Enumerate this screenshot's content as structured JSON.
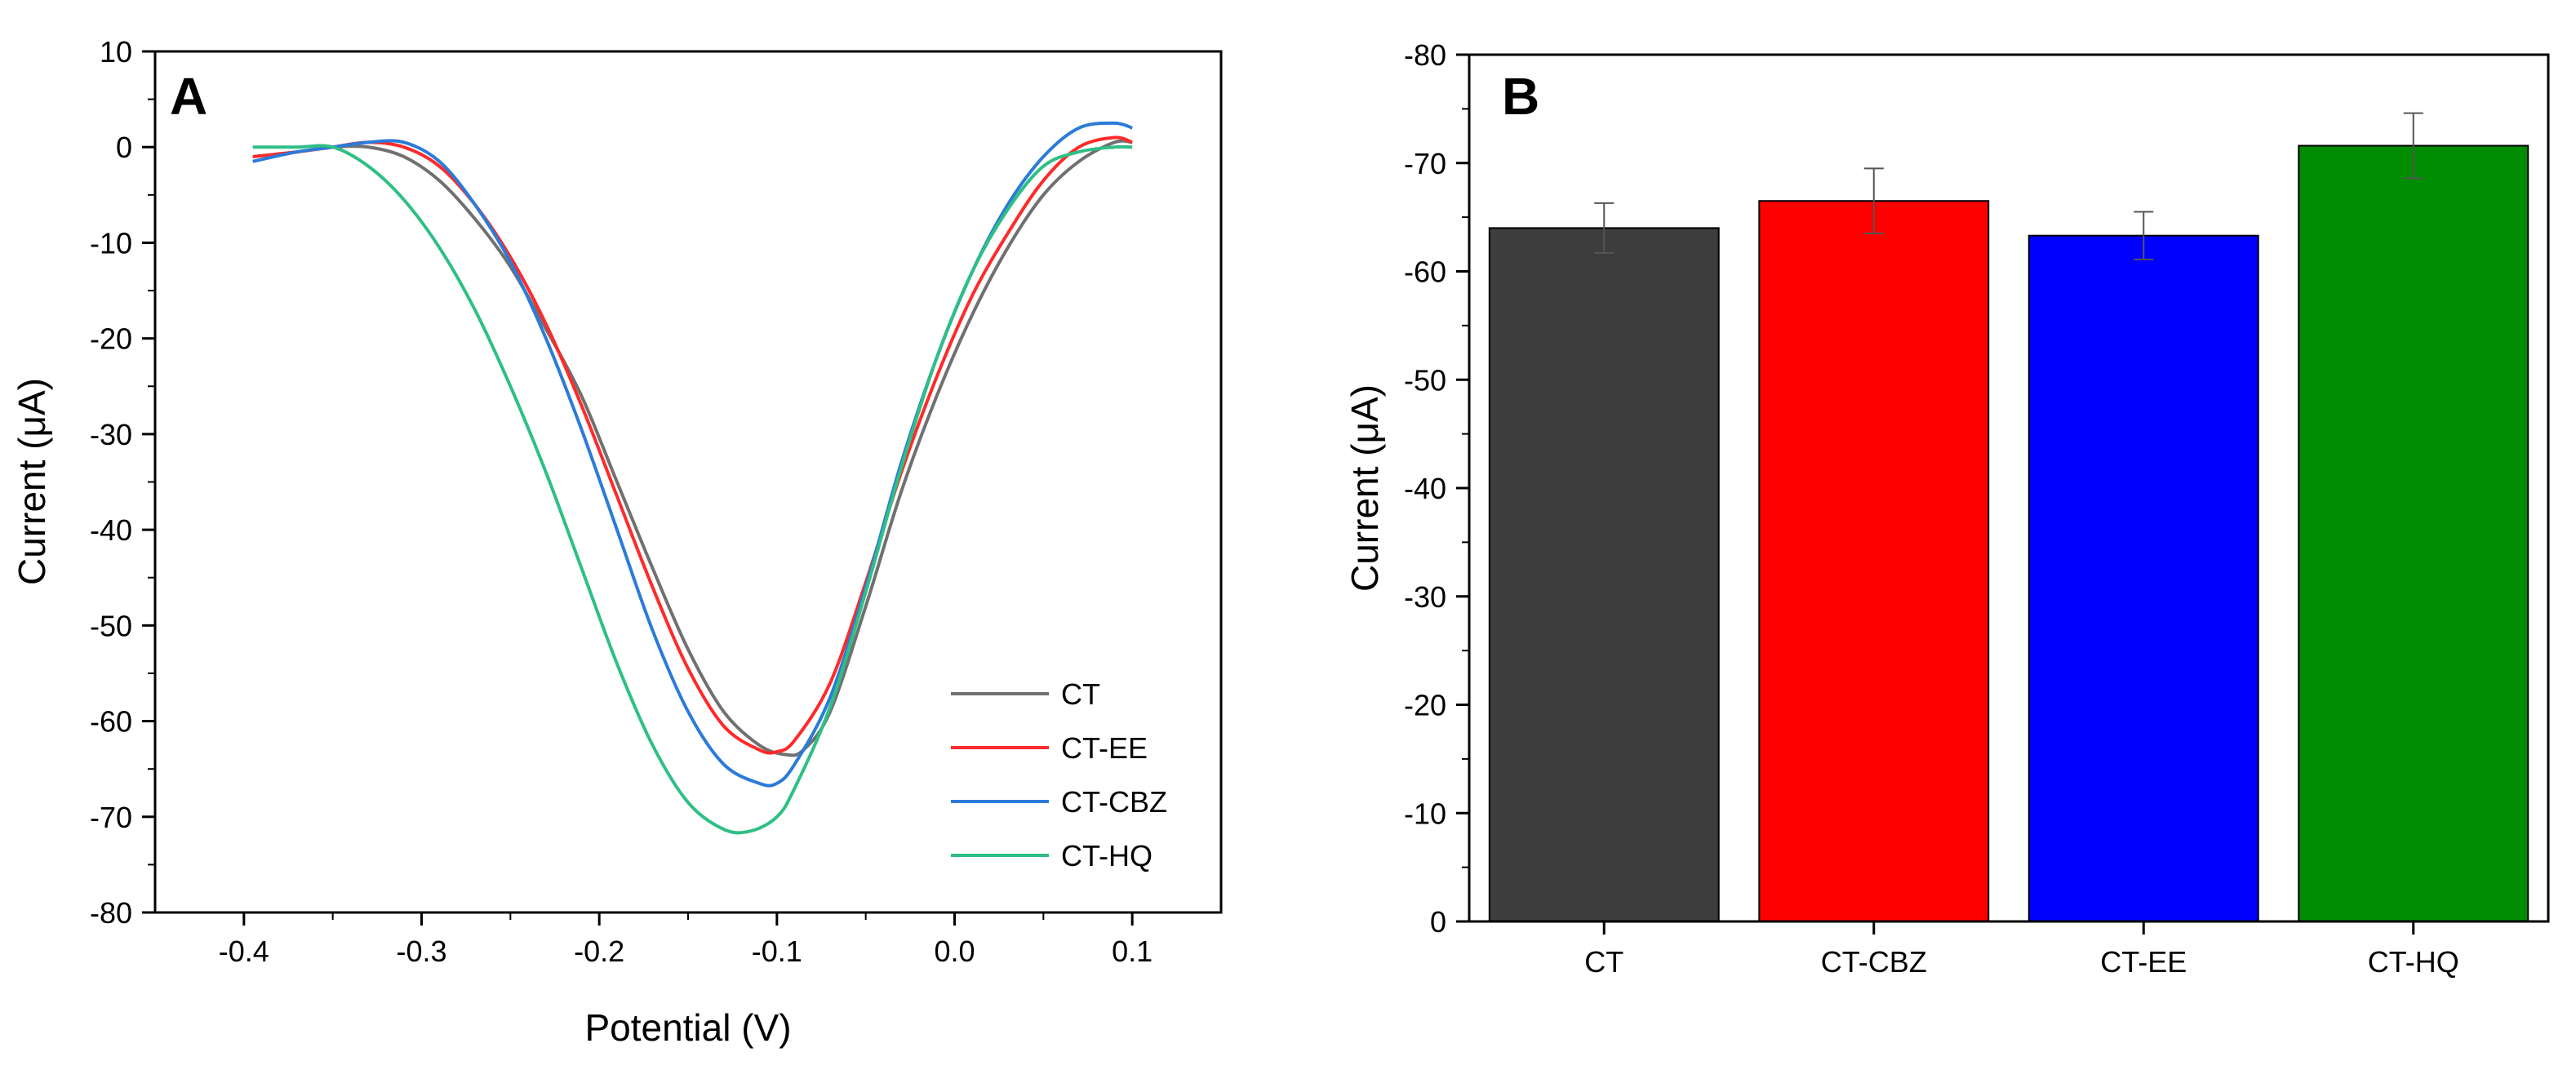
{
  "chart_data": [
    {
      "panel": "A",
      "type": "line",
      "xlabel": "Potential (V)",
      "ylabel": "Current (μA)",
      "xlim": [
        -0.45,
        0.15
      ],
      "ylim": [
        -80,
        10
      ],
      "xticks": [
        -0.4,
        -0.3,
        -0.2,
        -0.1,
        0.0,
        0.1
      ],
      "xtick_labels": [
        "-0.4",
        "-0.3",
        "-0.2",
        "-0.1",
        "0.0",
        "0.1"
      ],
      "yticks": [
        10,
        0,
        -10,
        -20,
        -30,
        -40,
        -50,
        -60,
        -70,
        -80
      ],
      "ytick_labels": [
        "10",
        "0",
        "-10",
        "-20",
        "-30",
        "-40",
        "-50",
        "-60",
        "-70",
        "-80"
      ],
      "legend_position": "bottom-right",
      "series": [
        {
          "name": "CT",
          "color": "#707070",
          "x": [
            -0.395,
            -0.37,
            -0.35,
            -0.33,
            -0.31,
            -0.29,
            -0.27,
            -0.25,
            -0.23,
            -0.21,
            -0.19,
            -0.17,
            -0.15,
            -0.13,
            -0.11,
            -0.095,
            -0.085,
            -0.07,
            -0.05,
            -0.03,
            -0.01,
            0.01,
            0.03,
            0.05,
            0.07,
            0.09,
            0.1
          ],
          "y": [
            -1.0,
            -0.5,
            0.0,
            0.0,
            -1.0,
            -3.5,
            -7.5,
            -12.5,
            -19.0,
            -26.0,
            -35.0,
            -44.0,
            -52.5,
            -59.0,
            -62.5,
            -63.5,
            -63.0,
            -59.0,
            -48.0,
            -36.0,
            -26.0,
            -17.5,
            -10.5,
            -5.0,
            -1.5,
            0.5,
            0.5
          ]
        },
        {
          "name": "CT-EE",
          "color": "#ff2a2a",
          "x": [
            -0.395,
            -0.37,
            -0.35,
            -0.33,
            -0.31,
            -0.29,
            -0.27,
            -0.25,
            -0.23,
            -0.21,
            -0.19,
            -0.17,
            -0.15,
            -0.13,
            -0.11,
            -0.1,
            -0.09,
            -0.07,
            -0.05,
            -0.03,
            -0.01,
            0.01,
            0.03,
            0.05,
            0.07,
            0.09,
            0.1
          ],
          "y": [
            -1.0,
            -0.5,
            0.0,
            0.5,
            0.0,
            -2.0,
            -6.0,
            -11.5,
            -18.5,
            -27.0,
            -36.5,
            -46.0,
            -54.5,
            -60.5,
            -63.0,
            -63.2,
            -62.0,
            -56.0,
            -45.5,
            -34.0,
            -24.0,
            -15.5,
            -9.0,
            -3.5,
            0.0,
            1.0,
            0.5
          ]
        },
        {
          "name": "CT-CBZ",
          "color": "#2b7bd9",
          "x": [
            -0.395,
            -0.37,
            -0.35,
            -0.33,
            -0.31,
            -0.29,
            -0.27,
            -0.25,
            -0.23,
            -0.21,
            -0.19,
            -0.17,
            -0.15,
            -0.13,
            -0.11,
            -0.1,
            -0.09,
            -0.07,
            -0.05,
            -0.03,
            -0.01,
            0.01,
            0.03,
            0.05,
            0.07,
            0.09,
            0.1
          ],
          "y": [
            -1.5,
            -0.5,
            0.0,
            0.5,
            0.5,
            -1.5,
            -6.0,
            -12.0,
            -20.0,
            -29.5,
            -40.0,
            -50.5,
            -59.0,
            -64.5,
            -66.5,
            -66.5,
            -64.5,
            -57.5,
            -46.0,
            -33.0,
            -22.0,
            -13.0,
            -6.0,
            -1.0,
            2.0,
            2.5,
            2.0
          ]
        },
        {
          "name": "CT-HQ",
          "color": "#2fbf85",
          "x": [
            -0.395,
            -0.37,
            -0.35,
            -0.33,
            -0.31,
            -0.29,
            -0.27,
            -0.25,
            -0.23,
            -0.21,
            -0.19,
            -0.17,
            -0.15,
            -0.13,
            -0.115,
            -0.1,
            -0.09,
            -0.07,
            -0.05,
            -0.03,
            -0.01,
            0.01,
            0.03,
            0.05,
            0.07,
            0.09,
            0.1
          ],
          "y": [
            0.0,
            0.0,
            0.0,
            -2.0,
            -5.5,
            -10.5,
            -17.0,
            -25.0,
            -34.0,
            -44.0,
            -54.0,
            -62.5,
            -68.5,
            -71.3,
            -71.5,
            -70.0,
            -67.0,
            -58.5,
            -46.5,
            -33.5,
            -22.0,
            -13.0,
            -6.5,
            -2.0,
            -0.5,
            0.0,
            0.0
          ]
        }
      ]
    },
    {
      "panel": "B",
      "type": "bar",
      "xlabel": "",
      "ylabel": "Current (μA)",
      "ylim": [
        0,
        -80
      ],
      "yticks": [
        -80,
        -70,
        -60,
        -50,
        -40,
        -30,
        -20,
        -10,
        0
      ],
      "ytick_labels": [
        "-80",
        "-70",
        "-60",
        "-50",
        "-40",
        "-30",
        "-20",
        "-10",
        "0"
      ],
      "categories": [
        "CT",
        "CT-CBZ",
        "CT-EE",
        "CT-HQ"
      ],
      "values": [
        -64.0,
        -66.5,
        -63.3,
        -71.6
      ],
      "errors": [
        2.3,
        3.0,
        2.2,
        3.0
      ],
      "colors": [
        "#3d3d3d",
        "#ff0000",
        "#0000ff",
        "#008c00"
      ]
    }
  ]
}
